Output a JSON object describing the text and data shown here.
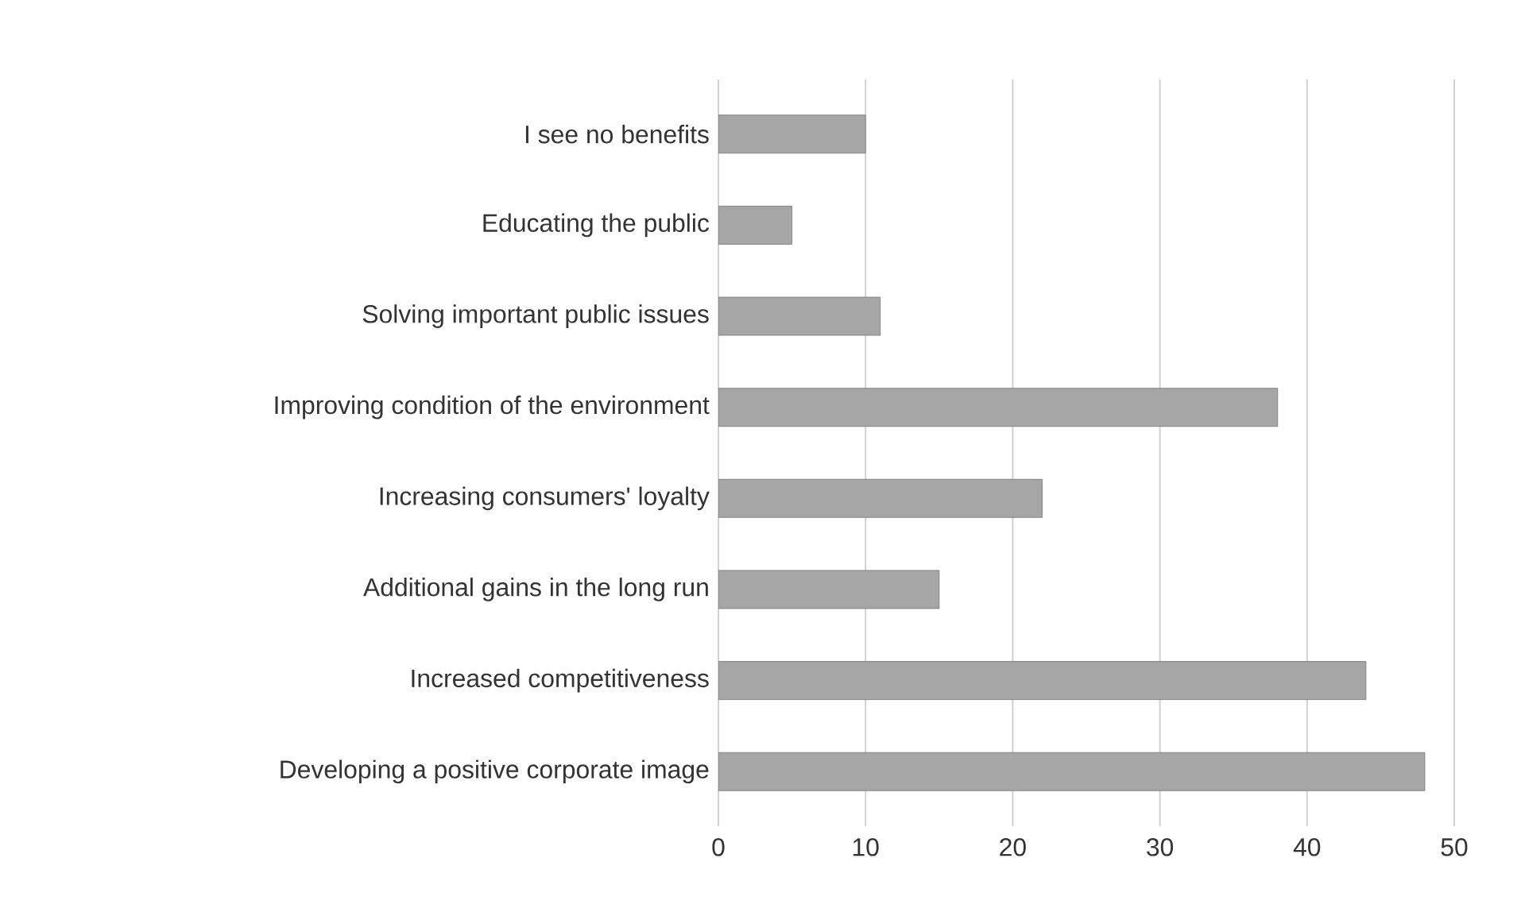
{
  "chart_data": {
    "type": "bar",
    "orientation": "horizontal",
    "categories": [
      "I see no benefits",
      "Educating the public",
      "Solving important public issues",
      "Improving condition of the environment",
      "Increasing consumers' loyalty",
      "Additional gains in the long run",
      "Increased competitiveness",
      "Developing a positive corporate image"
    ],
    "values": [
      10,
      5,
      11,
      38,
      22,
      15,
      44,
      48
    ],
    "color": "#a6a6a6",
    "xlim": [
      0,
      50
    ],
    "xticks": [
      0,
      10,
      20,
      30,
      40,
      50
    ],
    "grid": "x"
  }
}
